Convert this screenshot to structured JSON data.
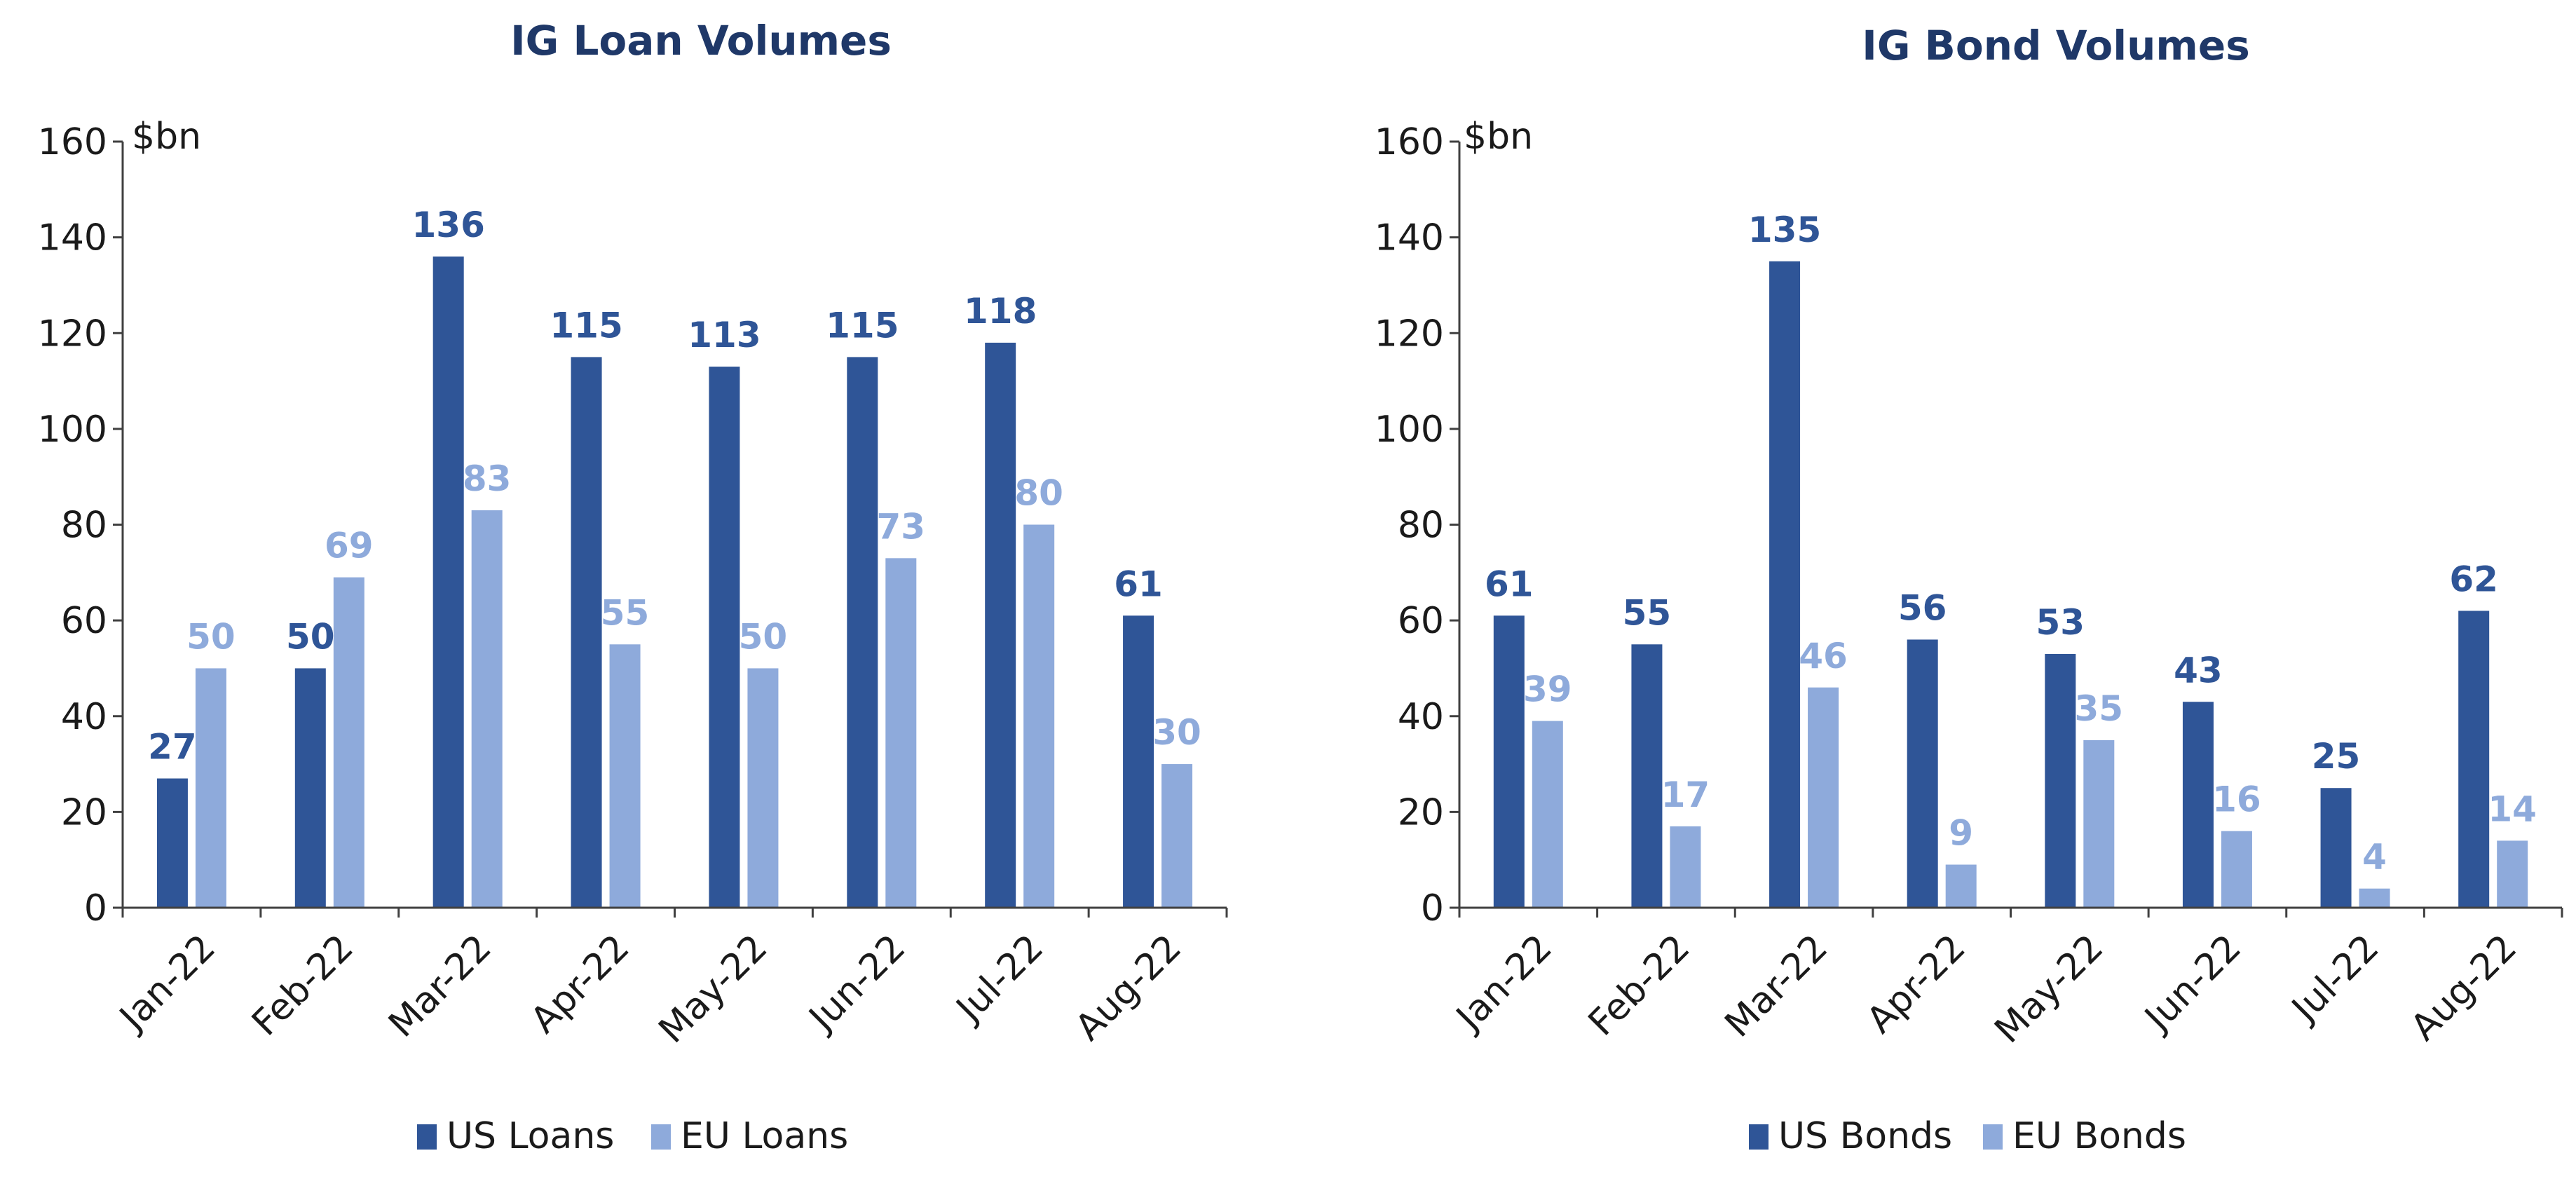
{
  "colors": {
    "us": "#2f5597",
    "eu": "#8eaadb",
    "title": "#1f3868"
  },
  "chart_data": [
    {
      "type": "bar",
      "title": "IG Loan Volumes",
      "unit_label": "$bn",
      "ylim": [
        0,
        160
      ],
      "yticks": [
        0,
        20,
        40,
        60,
        80,
        100,
        120,
        140,
        160
      ],
      "categories": [
        "Jan-22",
        "Feb-22",
        "Mar-22",
        "Apr-22",
        "May-22",
        "Jun-22",
        "Jul-22",
        "Aug-22"
      ],
      "series": [
        {
          "name": "US Loans",
          "values": [
            27,
            50,
            136,
            115,
            113,
            115,
            118,
            61
          ]
        },
        {
          "name": "EU Loans",
          "values": [
            50,
            69,
            83,
            55,
            50,
            73,
            80,
            30
          ]
        }
      ],
      "grid": false,
      "legend": "bottom"
    },
    {
      "type": "bar",
      "title": "IG Bond Volumes",
      "unit_label": "$bn",
      "ylim": [
        0,
        160
      ],
      "yticks": [
        0,
        20,
        40,
        60,
        80,
        100,
        120,
        140,
        160
      ],
      "categories": [
        "Jan-22",
        "Feb-22",
        "Mar-22",
        "Apr-22",
        "May-22",
        "Jun-22",
        "Jul-22",
        "Aug-22"
      ],
      "series": [
        {
          "name": "US Bonds",
          "values": [
            61,
            55,
            135,
            56,
            53,
            43,
            25,
            62
          ]
        },
        {
          "name": "EU Bonds",
          "values": [
            39,
            17,
            46,
            9,
            35,
            16,
            4,
            14
          ]
        }
      ],
      "grid": false,
      "legend": "bottom"
    }
  ]
}
